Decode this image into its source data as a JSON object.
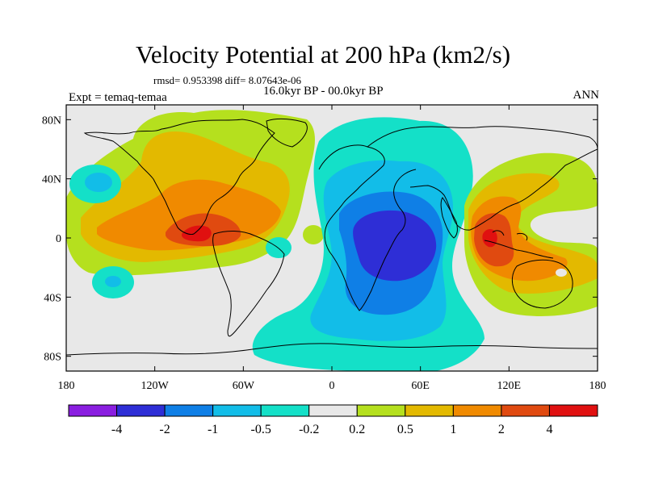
{
  "title": "Velocity Potential at 200 hPa (km2/s)",
  "stats_line": "rmsd= 0.953398 diff= 8.07643e-06",
  "period_line": "16.0kyr BP - 00.0kyr BP",
  "experiment_label": "Expt = temaq-temaa",
  "season_label": "ANN",
  "axes": {
    "x_ticks": [
      {
        "value": -180,
        "label": "180"
      },
      {
        "value": -120,
        "label": "120W"
      },
      {
        "value": -60,
        "label": "60W"
      },
      {
        "value": 0,
        "label": "0"
      },
      {
        "value": 60,
        "label": "60E"
      },
      {
        "value": 120,
        "label": "120E"
      },
      {
        "value": 180,
        "label": "180"
      }
    ],
    "y_ticks": [
      {
        "value": 80,
        "label": "80N"
      },
      {
        "value": 40,
        "label": "40N"
      },
      {
        "value": 0,
        "label": "0"
      },
      {
        "value": -40,
        "label": "40S"
      },
      {
        "value": -80,
        "label": "80S"
      }
    ],
    "lon_range": [
      -180,
      180
    ],
    "lat_range": [
      -90,
      90
    ]
  },
  "colorbar": {
    "colors": [
      "#8a1ee0",
      "#2e2ed6",
      "#0f7fe6",
      "#12bde8",
      "#14e0c8",
      "#e8e8e8",
      "#b5e01e",
      "#e3b900",
      "#f08a00",
      "#e04a10",
      "#e01010"
    ],
    "labels": [
      "-4",
      "-2",
      "-1",
      "-0.5",
      "-0.2",
      "0.2",
      "0.5",
      "1",
      "2",
      "4"
    ]
  },
  "chart_data": {
    "type": "heatmap",
    "title": "Velocity Potential at 200 hPa (km2/s)",
    "levels": [
      -4,
      -2,
      -1,
      -0.5,
      -0.2,
      0.2,
      0.5,
      1,
      2,
      4
    ],
    "xlim": [
      -180,
      180
    ],
    "ylim": [
      -90,
      90
    ],
    "features": [
      {
        "name": "positive-anomaly-americas-north-atlantic",
        "lon": [
          -170,
          -20
        ],
        "lat": [
          -20,
          80
        ],
        "max_level": "2 to 4",
        "center_lon": -90,
        "center_lat": 5
      },
      {
        "name": "negative-anomaly-africa-indian-ocean",
        "lon": [
          -20,
          90
        ],
        "lat": [
          -85,
          80
        ],
        "min_level": "-2 to -4",
        "center_lon": 45,
        "center_lat": 0
      },
      {
        "name": "positive-anomaly-maritime-continent",
        "lon": [
          90,
          180
        ],
        "lat": [
          -40,
          40
        ],
        "max_level": "2 to 4",
        "center_lon": 110,
        "center_lat": 0
      },
      {
        "name": "negative-anomaly-north-pacific",
        "lon": [
          -180,
          -145
        ],
        "lat": [
          25,
          55
        ],
        "min_level": "-0.2 to -1"
      },
      {
        "name": "negative-anomaly-south-pacific",
        "lon": [
          -150,
          -120
        ],
        "lat": [
          -50,
          -20
        ],
        "min_level": "-0.2 to -1"
      }
    ]
  }
}
